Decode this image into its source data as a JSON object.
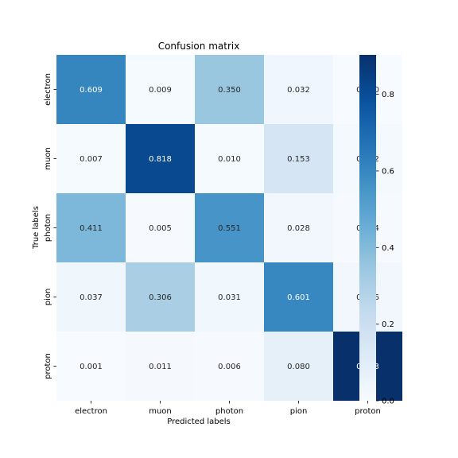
{
  "chart_data": {
    "type": "heatmap",
    "title": "Confusion matrix",
    "xlabel": "Predicted labels",
    "ylabel": "True labels",
    "x_categories": [
      "electron",
      "muon",
      "photon",
      "pion",
      "proton"
    ],
    "y_categories": [
      "electron",
      "muon",
      "photon",
      "pion",
      "proton"
    ],
    "values": [
      [
        0.609,
        0.009,
        0.35,
        0.032,
        0.0
      ],
      [
        0.007,
        0.818,
        0.01,
        0.153,
        0.012
      ],
      [
        0.411,
        0.005,
        0.551,
        0.028,
        0.004
      ],
      [
        0.037,
        0.306,
        0.031,
        0.601,
        0.026
      ],
      [
        0.001,
        0.011,
        0.006,
        0.08,
        0.903
      ]
    ],
    "value_labels": [
      [
        "0.609",
        "0.009",
        "0.350",
        "0.032",
        "0.000"
      ],
      [
        "0.007",
        "0.818",
        "0.010",
        "0.153",
        "0.012"
      ],
      [
        "0.411",
        "0.005",
        "0.551",
        "0.028",
        "0.004"
      ],
      [
        "0.037",
        "0.306",
        "0.031",
        "0.601",
        "0.026"
      ],
      [
        "0.001",
        "0.011",
        "0.006",
        "0.080",
        "0.903"
      ]
    ],
    "colorbar": {
      "colormap": "Blues",
      "range": [
        0,
        0.903
      ],
      "ticks": [
        0.0,
        0.2,
        0.4,
        0.6,
        0.8
      ],
      "tick_labels": [
        "0.0",
        "0.2",
        "0.4",
        "0.6",
        "0.8"
      ]
    },
    "grid": false
  }
}
